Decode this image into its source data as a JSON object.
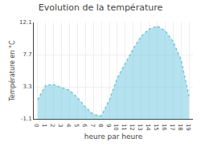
{
  "chart_data": {
    "type": "area",
    "title": "Evolution de la température",
    "xlabel": "heure par heure",
    "ylabel": "Température en °C",
    "x": [
      0,
      1,
      2,
      3,
      4,
      5,
      6,
      7,
      8,
      9,
      10,
      11,
      12,
      13,
      14,
      15,
      16,
      17,
      18,
      19
    ],
    "values": [
      1.5,
      3.5,
      3.6,
      3.2,
      2.8,
      1.8,
      0.5,
      -0.5,
      -0.7,
      1.5,
      4.5,
      6.5,
      8.5,
      10.2,
      11.2,
      11.6,
      11.0,
      9.5,
      7.0,
      2.0
    ],
    "color": "#6ac8df",
    "line_style": "dotted",
    "xlim": [
      -0.5,
      19.5
    ],
    "xticks": [
      0,
      1,
      2,
      3,
      4,
      5,
      6,
      7,
      8,
      9,
      10,
      11,
      12,
      13,
      14,
      15,
      16,
      17,
      18,
      19
    ],
    "ylim": [
      -1.1,
      12.1
    ],
    "yticks": [
      -1.1,
      3.3,
      7.7,
      12.1
    ],
    "grid": true
  }
}
